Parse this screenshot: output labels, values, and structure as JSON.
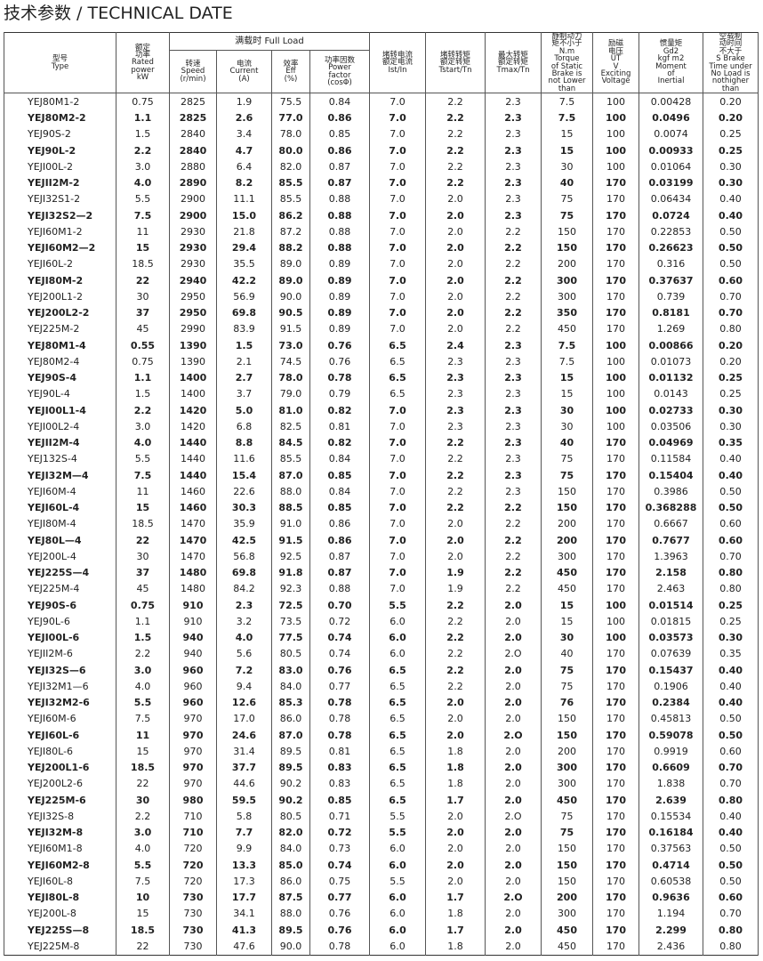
{
  "title": "技术参数 / TECHNICAL DATE",
  "table": {
    "group": "满载时 Full Load",
    "columns": [
      {
        "lines": [
          "型号",
          "Type"
        ]
      },
      {
        "lines": [
          "额定",
          "功率",
          "Rated",
          "power",
          "kW"
        ]
      },
      {
        "lines": [
          "转速",
          "Speed",
          "(r/min)"
        ]
      },
      {
        "lines": [
          "电流",
          "Current",
          "(A)"
        ]
      },
      {
        "lines": [
          "效率",
          "Eff",
          "(%)"
        ]
      },
      {
        "lines": [
          "功率因数",
          "Power",
          "factor",
          "(cosΦ)"
        ]
      },
      {
        "lines": [
          "堵转电流",
          "额定电流",
          "Ist/In"
        ]
      },
      {
        "lines": [
          "堵转转矩",
          "额定转矩",
          "Tstart/Tn"
        ]
      },
      {
        "lines": [
          "最大转矩",
          "额定转矩",
          "Tmax/Tn"
        ]
      },
      {
        "lines": [
          "静制动力",
          "矩不小于",
          "N.m",
          "Torque",
          "of Static",
          "Brake is",
          "not Lower",
          "than"
        ]
      },
      {
        "lines": [
          "励磁",
          "电压",
          "UT",
          "V",
          "Exciting",
          "Voltage"
        ]
      },
      {
        "lines": [
          "惯量矩",
          "Gd2",
          "kgf m2",
          "Moment",
          "of",
          "Inertial"
        ]
      },
      {
        "lines": [
          "空载制",
          "动时间",
          "不大于",
          "S Brake",
          "Time under",
          "No Load is",
          "nothigher",
          "than"
        ]
      }
    ],
    "rows": [
      [
        "YEJ80M1-2",
        "0.75",
        "2825",
        "1.9",
        "75.5",
        "0.84",
        "7.0",
        "2.2",
        "2.3",
        "7.5",
        "100",
        "0.00428",
        "0.20"
      ],
      [
        "YEJ80M2-2",
        "1.1",
        "2825",
        "2.6",
        "77.0",
        "0.86",
        "7.0",
        "2.2",
        "2.3",
        "7.5",
        "100",
        "0.0496",
        "0.20"
      ],
      [
        "YEJ90S-2",
        "1.5",
        "2840",
        "3.4",
        "78.0",
        "0.85",
        "7.0",
        "2.2",
        "2.3",
        "15",
        "100",
        "0.0074",
        "0.25"
      ],
      [
        "YEJ90L-2",
        "2.2",
        "2840",
        "4.7",
        "80.0",
        "0.86",
        "7.0",
        "2.2",
        "2.3",
        "15",
        "100",
        "0.00933",
        "0.25"
      ],
      [
        "YEJI00L-2",
        "3.0",
        "2880",
        "6.4",
        "82.0",
        "0.87",
        "7.0",
        "2.2",
        "2.3",
        "30",
        "100",
        "0.01064",
        "0.30"
      ],
      [
        "YEJII2M-2",
        "4.0",
        "2890",
        "8.2",
        "85.5",
        "0.87",
        "7.0",
        "2.2",
        "2.3",
        "40",
        "170",
        "0.03199",
        "0.30"
      ],
      [
        "YEJI32S1-2",
        "5.5",
        "2900",
        "11.1",
        "85.5",
        "0.88",
        "7.0",
        "2.0",
        "2.3",
        "75",
        "170",
        "0.06434",
        "0.40"
      ],
      [
        "YEJI32S2—2",
        "7.5",
        "2900",
        "15.0",
        "86.2",
        "0.88",
        "7.0",
        "2.0",
        "2.3",
        "75",
        "170",
        "0.0724",
        "0.40"
      ],
      [
        "YEJI60M1-2",
        "11",
        "2930",
        "21.8",
        "87.2",
        "0.88",
        "7.0",
        "2.0",
        "2.2",
        "150",
        "170",
        "0.22853",
        "0.50"
      ],
      [
        "YEJI60M2—2",
        "15",
        "2930",
        "29.4",
        "88.2",
        "0.88",
        "7.0",
        "2.0",
        "2.2",
        "150",
        "170",
        "0.26623",
        "0.50"
      ],
      [
        "YEJI60L-2",
        "18.5",
        "2930",
        "35.5",
        "89.0",
        "0.89",
        "7.0",
        "2.0",
        "2.2",
        "200",
        "170",
        "0.316",
        "0.50"
      ],
      [
        "YEJI80M-2",
        "22",
        "2940",
        "42.2",
        "89.0",
        "0.89",
        "7.0",
        "2.0",
        "2.2",
        "300",
        "170",
        "0.37637",
        "0.60"
      ],
      [
        "YEJ200L1-2",
        "30",
        "2950",
        "56.9",
        "90.0",
        "0.89",
        "7.0",
        "2.0",
        "2.2",
        "300",
        "170",
        "0.739",
        "0.70"
      ],
      [
        "YEJ200L2-2",
        "37",
        "2950",
        "69.8",
        "90.5",
        "0.89",
        "7.0",
        "2.0",
        "2.2",
        "350",
        "170",
        "0.8181",
        "0.70"
      ],
      [
        "YEJ225M-2",
        "45",
        "2990",
        "83.9",
        "91.5",
        "0.89",
        "7.0",
        "2.0",
        "2.2",
        "450",
        "170",
        "1.269",
        "0.80"
      ],
      [
        "YEJ80M1-4",
        "0.55",
        "1390",
        "1.5",
        "73.0",
        "0.76",
        "6.5",
        "2.4",
        "2.3",
        "7.5",
        "100",
        "0.00866",
        "0.20"
      ],
      [
        "YEJ80M2-4",
        "0.75",
        "1390",
        "2.1",
        "74.5",
        "0.76",
        "6.5",
        "2.3",
        "2.3",
        "7.5",
        "100",
        "0.01073",
        "0.20"
      ],
      [
        "YEJ90S-4",
        "1.1",
        "1400",
        "2.7",
        "78.0",
        "0.78",
        "6.5",
        "2.3",
        "2.3",
        "15",
        "100",
        "0.01132",
        "0.25"
      ],
      [
        "YEJ90L-4",
        "1.5",
        "1400",
        "3.7",
        "79.0",
        "0.79",
        "6.5",
        "2.3",
        "2.3",
        "15",
        "100",
        "0.0143",
        "0.25"
      ],
      [
        "YEJI00L1-4",
        "2.2",
        "1420",
        "5.0",
        "81.0",
        "0.82",
        "7.0",
        "2.3",
        "2.3",
        "30",
        "100",
        "0.02733",
        "0.30"
      ],
      [
        "YEJI00L2-4",
        "3.0",
        "1420",
        "6.8",
        "82.5",
        "0.81",
        "7.0",
        "2.3",
        "2.3",
        "30",
        "100",
        "0.03506",
        "0.30"
      ],
      [
        "YEJII2M-4",
        "4.0",
        "1440",
        "8.8",
        "84.5",
        "0.82",
        "7.0",
        "2.2",
        "2.3",
        "40",
        "170",
        "0.04969",
        "0.35"
      ],
      [
        "YEJ132S-4",
        "5.5",
        "1440",
        "11.6",
        "85.5",
        "0.84",
        "7.0",
        "2.2",
        "2.3",
        "75",
        "170",
        "0.11584",
        "0.40"
      ],
      [
        "YEJI32M—4",
        "7.5",
        "1440",
        "15.4",
        "87.0",
        "0.85",
        "7.0",
        "2.2",
        "2.3",
        "75",
        "170",
        "0.15404",
        "0.40"
      ],
      [
        "YEJI60M-4",
        "11",
        "1460",
        "22.6",
        "88.0",
        "0.84",
        "7.0",
        "2.2",
        "2.3",
        "150",
        "170",
        "0.3986",
        "0.50"
      ],
      [
        "YEJI60L-4",
        "15",
        "1460",
        "30.3",
        "88.5",
        "0.85",
        "7.0",
        "2.2",
        "2.2",
        "150",
        "170",
        "0.368288",
        "0.50"
      ],
      [
        "YEJI80M-4",
        "18.5",
        "1470",
        "35.9",
        "91.0",
        "0.86",
        "7.0",
        "2.0",
        "2.2",
        "200",
        "170",
        "0.6667",
        "0.60"
      ],
      [
        "YEJ80L—4",
        "22",
        "1470",
        "42.5",
        "91.5",
        "0.86",
        "7.0",
        "2.0",
        "2.2",
        "200",
        "170",
        "0.7677",
        "0.60"
      ],
      [
        "YEJ200L-4",
        "30",
        "1470",
        "56.8",
        "92.5",
        "0.87",
        "7.0",
        "2.0",
        "2.2",
        "300",
        "170",
        "1.3963",
        "0.70"
      ],
      [
        "YEJ225S—4",
        "37",
        "1480",
        "69.8",
        "91.8",
        "0.87",
        "7.0",
        "1.9",
        "2.2",
        "450",
        "170",
        "2.158",
        "0.80"
      ],
      [
        "YEJ225M-4",
        "45",
        "1480",
        "84.2",
        "92.3",
        "0.88",
        "7.0",
        "1.9",
        "2.2",
        "450",
        "170",
        "2.463",
        "0.80"
      ],
      [
        "YEJ90S-6",
        "0.75",
        "910",
        "2.3",
        "72.5",
        "0.70",
        "5.5",
        "2.2",
        "2.0",
        "15",
        "100",
        "0.01514",
        "0.25"
      ],
      [
        "YEJ90L-6",
        "1.1",
        "910",
        "3.2",
        "73.5",
        "0.72",
        "6.0",
        "2.2",
        "2.0",
        "15",
        "100",
        "0.01815",
        "0.25"
      ],
      [
        "YEJI00L-6",
        "1.5",
        "940",
        "4.0",
        "77.5",
        "0.74",
        "6.0",
        "2.2",
        "2.0",
        "30",
        "100",
        "0.03573",
        "0.30"
      ],
      [
        "YEJII2M-6",
        "2.2",
        "940",
        "5.6",
        "80.5",
        "0.74",
        "6.0",
        "2.2",
        "2.O",
        "40",
        "170",
        "0.07639",
        "0.35"
      ],
      [
        "YEJI32S—6",
        "3.0",
        "960",
        "7.2",
        "83.0",
        "0.76",
        "6.5",
        "2.2",
        "2.0",
        "75",
        "170",
        "0.15437",
        "0.40"
      ],
      [
        "YEJI32M1—6",
        "4.0",
        "960",
        "9.4",
        "84.0",
        "0.77",
        "6.5",
        "2.2",
        "2.0",
        "75",
        "170",
        "0.1906",
        "0.40"
      ],
      [
        "YEJI32M2-6",
        "5.5",
        "960",
        "12.6",
        "85.3",
        "0.78",
        "6.5",
        "2.0",
        "2.0",
        "76",
        "170",
        "0.2384",
        "0.40"
      ],
      [
        "YEJI60M-6",
        "7.5",
        "970",
        "17.0",
        "86.0",
        "0.78",
        "6.5",
        "2.0",
        "2.0",
        "150",
        "170",
        "0.45813",
        "0.50"
      ],
      [
        "YEJI60L-6",
        "11",
        "970",
        "24.6",
        "87.0",
        "0.78",
        "6.5",
        "2.0",
        "2.O",
        "150",
        "170",
        "0.59078",
        "0.50"
      ],
      [
        "YEJI80L-6",
        "15",
        "970",
        "31.4",
        "89.5",
        "0.81",
        "6.5",
        "1.8",
        "2.0",
        "200",
        "170",
        "0.9919",
        "0.60"
      ],
      [
        "YEJ200L1-6",
        "18.5",
        "970",
        "37.7",
        "89.5",
        "0.83",
        "6.5",
        "1.8",
        "2.0",
        "300",
        "170",
        "0.6609",
        "0.70"
      ],
      [
        "YEJ200L2-6",
        "22",
        "970",
        "44.6",
        "90.2",
        "0.83",
        "6.5",
        "1.8",
        "2.0",
        "300",
        "170",
        "1.838",
        "0.70"
      ],
      [
        "YEJ225M-6",
        "30",
        "980",
        "59.5",
        "90.2",
        "0.85",
        "6.5",
        "1.7",
        "2.0",
        "450",
        "170",
        "2.639",
        "0.80"
      ],
      [
        "YEJI32S-8",
        "2.2",
        "710",
        "5.8",
        "80.5",
        "0.71",
        "5.5",
        "2.0",
        "2.O",
        "75",
        "170",
        "0.15534",
        "0.40"
      ],
      [
        "YEJI32M-8",
        "3.0",
        "710",
        "7.7",
        "82.0",
        "0.72",
        "5.5",
        "2.0",
        "2.0",
        "75",
        "170",
        "0.16184",
        "0.40"
      ],
      [
        "YEJI60M1-8",
        "4.0",
        "720",
        "9.9",
        "84.0",
        "0.73",
        "6.0",
        "2.0",
        "2.0",
        "150",
        "170",
        "0.37563",
        "0.50"
      ],
      [
        "YEJI60M2-8",
        "5.5",
        "720",
        "13.3",
        "85.0",
        "0.74",
        "6.0",
        "2.0",
        "2.0",
        "150",
        "170",
        "0.4714",
        "0.50"
      ],
      [
        "YEJI60L-8",
        "7.5",
        "720",
        "17.3",
        "86.0",
        "0.75",
        "5.5",
        "2.0",
        "2.0",
        "150",
        "170",
        "0.60538",
        "0.50"
      ],
      [
        "YEJI80L-8",
        "10",
        "730",
        "17.7",
        "87.5",
        "0.77",
        "6.0",
        "1.7",
        "2.O",
        "200",
        "170",
        "0.9636",
        "0.60"
      ],
      [
        "YEJ200L-8",
        "15",
        "730",
        "34.1",
        "88.0",
        "0.76",
        "6.0",
        "1.8",
        "2.0",
        "300",
        "170",
        "1.194",
        "0.70"
      ],
      [
        "YEJ225S—8",
        "18.5",
        "730",
        "41.3",
        "89.5",
        "0.76",
        "6.0",
        "1.7",
        "2.0",
        "450",
        "170",
        "2.299",
        "0.80"
      ],
      [
        "YEJ225M-8",
        "22",
        "730",
        "47.6",
        "90.0",
        "0.78",
        "6.0",
        "1.8",
        "2.0",
        "450",
        "170",
        "2.436",
        "0.80"
      ]
    ]
  }
}
